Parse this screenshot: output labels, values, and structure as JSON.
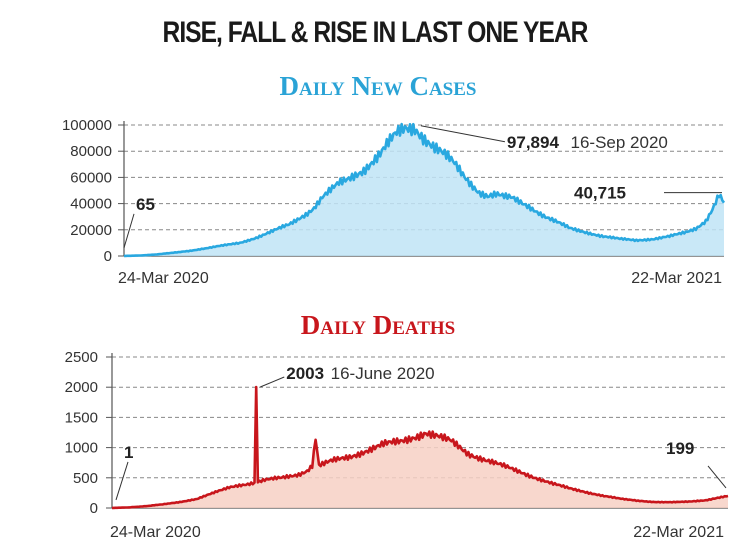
{
  "page_title": "RISE, FALL & RISE IN LAST ONE YEAR",
  "chart_data": [
    {
      "type": "area",
      "title": "Daily New Cases",
      "color": "#29a8e0",
      "fill_color": "#bfe4f6",
      "ylim": [
        0,
        100000
      ],
      "y_ticks": [
        "100000",
        "80000",
        "60000",
        "40000",
        "20000",
        "0"
      ],
      "y_tick_values": [
        100000,
        80000,
        60000,
        40000,
        20000,
        0
      ],
      "x_start_label": "24-Mar 2020",
      "x_end_label": "22-Mar 2021",
      "x_range": [
        0,
        363
      ],
      "series_points": [
        [
          0,
          65
        ],
        [
          10,
          400
        ],
        [
          20,
          1200
        ],
        [
          30,
          2500
        ],
        [
          40,
          4000
        ],
        [
          50,
          6000
        ],
        [
          60,
          8000
        ],
        [
          70,
          10000
        ],
        [
          80,
          14000
        ],
        [
          90,
          19000
        ],
        [
          100,
          24000
        ],
        [
          105,
          28000
        ],
        [
          110,
          32000
        ],
        [
          115,
          37000
        ],
        [
          120,
          45000
        ],
        [
          125,
          50000
        ],
        [
          130,
          55000
        ],
        [
          135,
          58000
        ],
        [
          140,
          62000
        ],
        [
          145,
          66000
        ],
        [
          150,
          72000
        ],
        [
          155,
          78000
        ],
        [
          160,
          86000
        ],
        [
          165,
          93000
        ],
        [
          170,
          97000
        ],
        [
          176,
          97894
        ],
        [
          182,
          90000
        ],
        [
          188,
          83000
        ],
        [
          195,
          76000
        ],
        [
          200,
          70000
        ],
        [
          205,
          62000
        ],
        [
          210,
          55000
        ],
        [
          215,
          49000
        ],
        [
          220,
          46000
        ],
        [
          225,
          47000
        ],
        [
          230,
          45000
        ],
        [
          235,
          44000
        ],
        [
          240,
          41000
        ],
        [
          245,
          38000
        ],
        [
          250,
          34000
        ],
        [
          255,
          30000
        ],
        [
          260,
          27000
        ],
        [
          265,
          24000
        ],
        [
          270,
          21000
        ],
        [
          280,
          18000
        ],
        [
          290,
          15000
        ],
        [
          300,
          13000
        ],
        [
          310,
          12000
        ],
        [
          320,
          13000
        ],
        [
          330,
          15000
        ],
        [
          340,
          18000
        ],
        [
          346,
          21000
        ],
        [
          352,
          27000
        ],
        [
          356,
          36000
        ],
        [
          360,
          47000
        ],
        [
          363,
          40715
        ]
      ],
      "annotations": [
        {
          "label": "65",
          "x": 0,
          "y": 65
        },
        {
          "label": "97,894",
          "note": "16-Sep 2020",
          "x": 176,
          "y": 97894
        },
        {
          "label": "40,715",
          "x": 363,
          "y": 40715
        }
      ]
    },
    {
      "type": "area",
      "title": "Daily Deaths",
      "color": "#c8161c",
      "fill_color": "#f7d0c4",
      "ylim": [
        0,
        2500
      ],
      "y_ticks": [
        "2500",
        "2000",
        "1500",
        "1000",
        "500",
        "0"
      ],
      "y_tick_values": [
        2500,
        2000,
        1500,
        1000,
        500,
        0
      ],
      "x_start_label": "24-Mar 2020",
      "x_end_label": "22-Mar 2021",
      "x_range": [
        0,
        363
      ],
      "series_points": [
        [
          0,
          1
        ],
        [
          10,
          10
        ],
        [
          20,
          30
        ],
        [
          30,
          60
        ],
        [
          40,
          100
        ],
        [
          50,
          150
        ],
        [
          55,
          200
        ],
        [
          60,
          250
        ],
        [
          65,
          300
        ],
        [
          70,
          350
        ],
        [
          75,
          380
        ],
        [
          80,
          400
        ],
        [
          84,
          420
        ],
        [
          85,
          2003
        ],
        [
          86,
          430
        ],
        [
          90,
          460
        ],
        [
          100,
          500
        ],
        [
          110,
          560
        ],
        [
          115,
          620
        ],
        [
          118,
          700
        ],
        [
          120,
          1150
        ],
        [
          122,
          700
        ],
        [
          130,
          780
        ],
        [
          140,
          850
        ],
        [
          150,
          950
        ],
        [
          160,
          1050
        ],
        [
          170,
          1100
        ],
        [
          175,
          1150
        ],
        [
          180,
          1200
        ],
        [
          185,
          1250
        ],
        [
          190,
          1200
        ],
        [
          195,
          1150
        ],
        [
          200,
          1100
        ],
        [
          205,
          1000
        ],
        [
          210,
          900
        ],
        [
          220,
          800
        ],
        [
          230,
          700
        ],
        [
          240,
          600
        ],
        [
          250,
          500
        ],
        [
          260,
          400
        ],
        [
          270,
          320
        ],
        [
          280,
          260
        ],
        [
          290,
          200
        ],
        [
          300,
          150
        ],
        [
          310,
          120
        ],
        [
          320,
          100
        ],
        [
          330,
          95
        ],
        [
          340,
          105
        ],
        [
          350,
          130
        ],
        [
          356,
          165
        ],
        [
          363,
          199
        ]
      ],
      "annotations": [
        {
          "label": "1",
          "x": 0,
          "y": 1
        },
        {
          "label": "2003",
          "note": "16-June 2020",
          "x": 85,
          "y": 2003
        },
        {
          "label": "199",
          "x": 363,
          "y": 199
        }
      ]
    }
  ]
}
